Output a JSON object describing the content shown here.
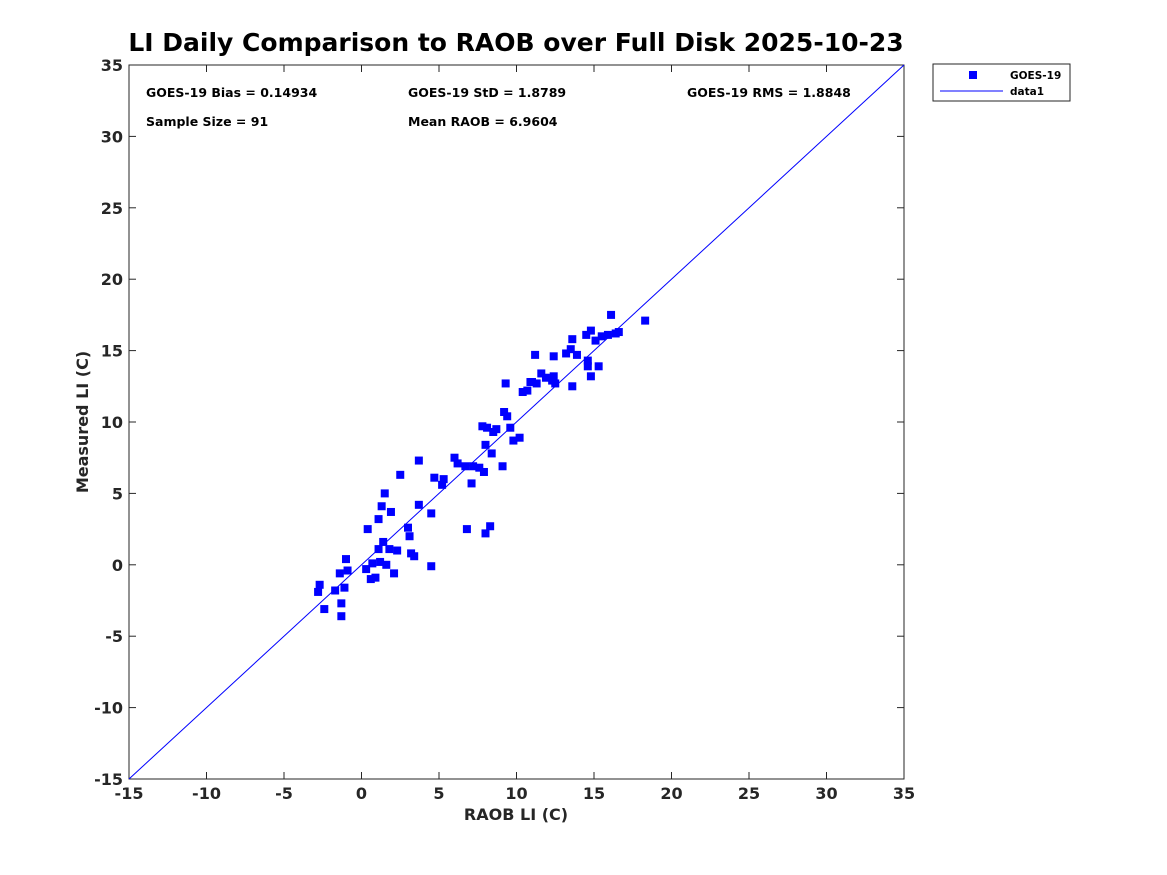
{
  "chart_data": {
    "type": "scatter",
    "title": "LI Daily Comparison to RAOB over Full Disk 2025-10-23",
    "xlabel": "RAOB LI (C)",
    "ylabel": "Measured LI (C)",
    "xlim": [
      -15,
      35
    ],
    "ylim": [
      -15,
      35
    ],
    "xticks": [
      -15,
      -10,
      -5,
      0,
      5,
      10,
      15,
      20,
      25,
      30,
      35
    ],
    "yticks": [
      -15,
      -10,
      -5,
      0,
      5,
      10,
      15,
      20,
      25,
      30,
      35
    ],
    "grid": false,
    "legend_position": "outside top-right",
    "stats": {
      "bias": "GOES-19 Bias = 0.14934",
      "std": "GOES-19 StD = 1.8789",
      "rms": "GOES-19 RMS = 1.8848",
      "sample_size": "Sample Size = 91",
      "mean_raob": "Mean RAOB = 6.9604"
    },
    "series": [
      {
        "name": "GOES-19",
        "marker": "square",
        "color": "#0000ff",
        "points": [
          [
            -2.8,
            -1.9
          ],
          [
            -2.7,
            -1.4
          ],
          [
            -2.4,
            -3.1
          ],
          [
            -1.7,
            -1.8
          ],
          [
            -1.4,
            -0.6
          ],
          [
            -1.3,
            -2.7
          ],
          [
            -1.3,
            -3.6
          ],
          [
            -1.1,
            -1.6
          ],
          [
            -1.0,
            0.4
          ],
          [
            -0.9,
            -0.4
          ],
          [
            0.3,
            -0.3
          ],
          [
            0.4,
            2.5
          ],
          [
            0.6,
            -1.0
          ],
          [
            0.7,
            0.1
          ],
          [
            0.9,
            -0.9
          ],
          [
            1.1,
            1.1
          ],
          [
            1.1,
            3.2
          ],
          [
            1.2,
            0.2
          ],
          [
            1.3,
            4.1
          ],
          [
            1.4,
            1.6
          ],
          [
            1.5,
            5.0
          ],
          [
            1.6,
            0.0
          ],
          [
            1.8,
            1.1
          ],
          [
            1.9,
            3.7
          ],
          [
            2.1,
            -0.6
          ],
          [
            2.3,
            1.0
          ],
          [
            2.5,
            6.3
          ],
          [
            3.0,
            2.6
          ],
          [
            3.1,
            2.0
          ],
          [
            3.2,
            0.8
          ],
          [
            3.4,
            0.6
          ],
          [
            3.7,
            7.3
          ],
          [
            3.7,
            4.2
          ],
          [
            4.5,
            3.6
          ],
          [
            4.5,
            -0.1
          ],
          [
            4.7,
            6.1
          ],
          [
            5.2,
            5.6
          ],
          [
            5.3,
            6.0
          ],
          [
            6.0,
            7.5
          ],
          [
            6.2,
            7.1
          ],
          [
            6.7,
            6.9
          ],
          [
            6.8,
            2.5
          ],
          [
            7.1,
            5.7
          ],
          [
            7.2,
            6.9
          ],
          [
            7.6,
            6.8
          ],
          [
            7.8,
            9.7
          ],
          [
            7.9,
            6.5
          ],
          [
            8.0,
            8.4
          ],
          [
            8.0,
            2.2
          ],
          [
            8.1,
            9.6
          ],
          [
            8.3,
            2.7
          ],
          [
            8.4,
            7.8
          ],
          [
            8.5,
            9.3
          ],
          [
            8.7,
            9.5
          ],
          [
            9.1,
            6.9
          ],
          [
            9.2,
            10.7
          ],
          [
            9.3,
            12.7
          ],
          [
            9.4,
            10.4
          ],
          [
            9.6,
            9.6
          ],
          [
            9.8,
            8.7
          ],
          [
            10.2,
            8.9
          ],
          [
            10.4,
            12.1
          ],
          [
            10.7,
            12.2
          ],
          [
            10.9,
            12.8
          ],
          [
            11.2,
            14.7
          ],
          [
            11.3,
            12.7
          ],
          [
            11.6,
            13.4
          ],
          [
            11.9,
            13.1
          ],
          [
            12.3,
            12.9
          ],
          [
            12.4,
            14.6
          ],
          [
            12.4,
            13.2
          ],
          [
            12.5,
            12.7
          ],
          [
            13.2,
            14.8
          ],
          [
            13.5,
            15.1
          ],
          [
            13.6,
            15.8
          ],
          [
            13.6,
            12.5
          ],
          [
            13.9,
            14.7
          ],
          [
            14.5,
            16.1
          ],
          [
            14.6,
            13.9
          ],
          [
            14.6,
            14.3
          ],
          [
            14.8,
            13.2
          ],
          [
            14.8,
            16.4
          ],
          [
            15.1,
            15.7
          ],
          [
            15.3,
            13.9
          ],
          [
            15.5,
            16.0
          ],
          [
            15.9,
            16.1
          ],
          [
            16.1,
            17.5
          ],
          [
            16.4,
            16.2
          ],
          [
            16.6,
            16.3
          ],
          [
            18.3,
            17.1
          ],
          [
            11.0,
            12.8
          ]
        ]
      },
      {
        "name": "data1",
        "type": "line",
        "color": "#0000ff",
        "x": [
          -15,
          35
        ],
        "y": [
          -15,
          35
        ]
      }
    ]
  }
}
